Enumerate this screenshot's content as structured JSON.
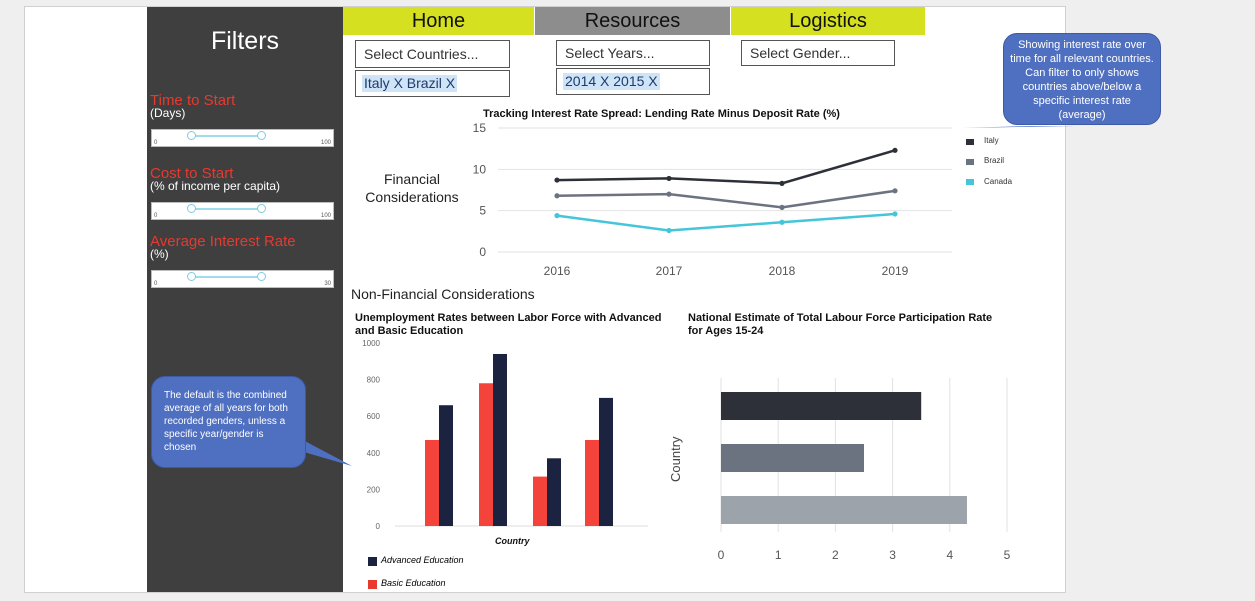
{
  "sidebar": {
    "title": "Filters",
    "filters": [
      {
        "label": "Time to Start",
        "sub": "(Days)",
        "min": "0",
        "max": "100",
        "low": 20,
        "high": 60
      },
      {
        "label": "Cost to Start",
        "sub": "(% of income per capita)",
        "min": "0",
        "max": "100",
        "low": 20,
        "high": 60
      },
      {
        "label": "Average Interest Rate",
        "sub": "(%)",
        "min": "0",
        "max": "30",
        "low": 6,
        "high": 18
      }
    ]
  },
  "nav": {
    "tabs": [
      {
        "label": "Home",
        "color": "#d4e020"
      },
      {
        "label": "Resources",
        "color": "#8d8d8d"
      },
      {
        "label": "Logistics",
        "color": "#d4e020"
      }
    ]
  },
  "selectors": {
    "countries": "Select Countries...",
    "years": "Select Years...",
    "gender": "Select Gender...",
    "countries_chip": "Italy X Brazil X",
    "years_chip": "2014 X 2015 X"
  },
  "callouts": {
    "top": "Showing interest rate over time for all relevant countries. Can filter to only shows countries above/below a specific interest rate (average)",
    "bottom": "The default is the combined average of all years for both recorded genders, unless a specific year/gender is chosen"
  },
  "sections": {
    "financial": "Financial Considerations",
    "non_financial": "Non-Financial Considerations"
  },
  "chart_data": [
    {
      "type": "line",
      "title": "Tracking Interest Rate Spread: Lending Rate Minus Deposit Rate (%)",
      "x": [
        "2016",
        "2017",
        "2018",
        "2019"
      ],
      "ylim": [
        0,
        15
      ],
      "yticks": [
        "0",
        "5",
        "10",
        "15"
      ],
      "legend": "right",
      "series": [
        {
          "name": "Italy",
          "color": "#2d3038",
          "values": [
            8.7,
            8.9,
            8.3,
            12.3
          ]
        },
        {
          "name": "Brazil",
          "color": "#6b7280",
          "values": [
            6.8,
            7,
            5.4,
            7.4
          ]
        },
        {
          "name": "Canada",
          "color": "#45c5d9",
          "values": [
            4.4,
            2.6,
            3.6,
            4.6
          ]
        }
      ]
    },
    {
      "type": "bar",
      "title": "Unemployment Rates between Labor Force with Advanced and Basic Education",
      "xlabel": "Country",
      "ylim": [
        0,
        1000
      ],
      "yticks": [
        "0",
        "200",
        "400",
        "600",
        "800",
        "1000"
      ],
      "categories": [
        "",
        "",
        "",
        ""
      ],
      "legend": "bottom",
      "series": [
        {
          "name": "Basic Education",
          "color": "#f4433a",
          "values": [
            470,
            780,
            270,
            470
          ]
        },
        {
          "name": "Advanced Education",
          "color": "#1c2340",
          "values": [
            660,
            940,
            370,
            700
          ]
        }
      ]
    },
    {
      "type": "bar",
      "orientation": "horizontal",
      "title": "National Estimate of Total Labour Force Participation Rate for Ages 15-24",
      "ylabel": "Country",
      "xlim": [
        0,
        5
      ],
      "xticks": [
        "0",
        "1",
        "2",
        "3",
        "4",
        "5"
      ],
      "values": [
        3.5,
        2.5,
        4.3
      ],
      "colors": [
        "#2d3038",
        "#6b7280",
        "#9ca3ab"
      ]
    }
  ]
}
